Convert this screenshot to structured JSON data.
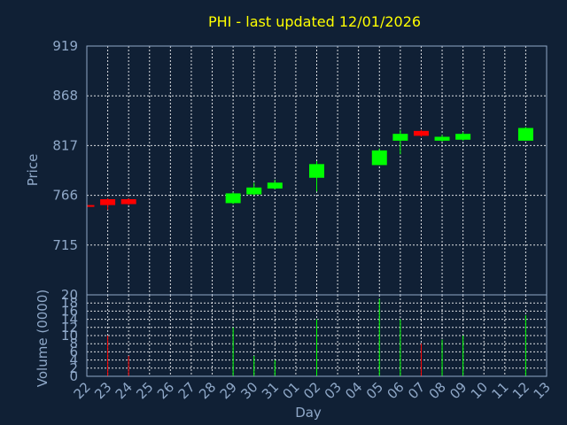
{
  "chart_data": {
    "type": "candlestick",
    "title": "PHI - last updated 12/01/2026",
    "xlabel": "Day",
    "price_axis": {
      "ylabel": "Price",
      "ylim": [
        664,
        919
      ],
      "ticks": [
        919,
        868,
        817,
        766,
        715
      ]
    },
    "volume_axis": {
      "ylabel": "Volume (0000)",
      "ylim": [
        0,
        20
      ],
      "ticks": [
        0,
        2,
        4,
        6,
        8,
        10,
        12,
        14,
        16,
        18,
        20
      ]
    },
    "grid": true,
    "colors": {
      "up": "#00ff00",
      "down": "#ff0000",
      "title": "#ffff00",
      "text": "#8fa8c8",
      "background": "#102035"
    },
    "categories": [
      "22",
      "23",
      "24",
      "25",
      "26",
      "27",
      "28",
      "29",
      "30",
      "31",
      "01",
      "02",
      "03",
      "04",
      "05",
      "06",
      "07",
      "08",
      "09",
      "10",
      "11",
      "12",
      "13"
    ],
    "candles": [
      {
        "day": "22",
        "open": 756,
        "high": 757,
        "low": 755,
        "close": 755.5,
        "volume": 0.5
      },
      {
        "day": "23",
        "open": 762,
        "high": 763,
        "low": 751,
        "close": 756,
        "volume": 10
      },
      {
        "day": "24",
        "open": 762,
        "high": 763,
        "low": 756,
        "close": 757,
        "volume": 5
      },
      {
        "day": "29",
        "open": 758,
        "high": 769,
        "low": 757,
        "close": 768,
        "volume": 12
      },
      {
        "day": "30",
        "open": 767,
        "high": 779,
        "low": 766,
        "close": 774,
        "volume": 5
      },
      {
        "day": "31",
        "open": 773,
        "high": 782,
        "low": 772,
        "close": 779,
        "volume": 4
      },
      {
        "day": "02",
        "open": 784,
        "high": 801,
        "low": 770,
        "close": 798,
        "volume": 14
      },
      {
        "day": "05",
        "open": 797,
        "high": 814,
        "low": 797,
        "close": 812,
        "volume": 19
      },
      {
        "day": "06",
        "open": 822,
        "high": 833,
        "low": 808,
        "close": 829,
        "volume": 14
      },
      {
        "day": "07",
        "open": 832,
        "high": 833,
        "low": 826,
        "close": 827,
        "volume": 8
      },
      {
        "day": "08",
        "open": 822,
        "high": 828,
        "low": 821,
        "close": 826,
        "volume": 9
      },
      {
        "day": "09",
        "open": 823,
        "high": 831,
        "low": 822,
        "close": 829,
        "volume": 10
      },
      {
        "day": "12",
        "open": 822,
        "high": 836,
        "low": 822,
        "close": 835,
        "volume": 15
      }
    ]
  }
}
